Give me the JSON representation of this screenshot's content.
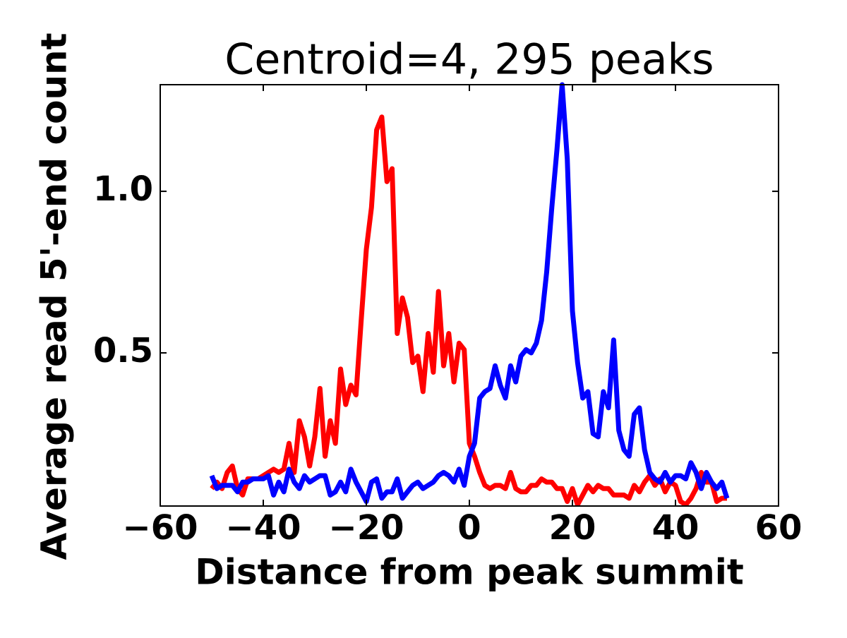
{
  "chart_data": {
    "type": "line",
    "title": "Centroid=4, 295 peaks",
    "xlabel": "Distance from peak summit",
    "ylabel": "Average read 5'-end count",
    "x": [
      -50,
      -49,
      -48,
      -47,
      -46,
      -45,
      -44,
      -43,
      -42,
      -41,
      -40,
      -39,
      -38,
      -37,
      -36,
      -35,
      -34,
      -33,
      -32,
      -31,
      -30,
      -29,
      -28,
      -27,
      -26,
      -25,
      -24,
      -23,
      -22,
      -21,
      -20,
      -19,
      -18,
      -17,
      -16,
      -15,
      -14,
      -13,
      -12,
      -11,
      -10,
      -9,
      -8,
      -7,
      -6,
      -5,
      -4,
      -3,
      -2,
      -1,
      0,
      1,
      2,
      3,
      4,
      5,
      6,
      7,
      8,
      9,
      10,
      11,
      12,
      13,
      14,
      15,
      16,
      17,
      18,
      19,
      20,
      21,
      22,
      23,
      24,
      25,
      26,
      27,
      28,
      29,
      30,
      31,
      32,
      33,
      34,
      35,
      36,
      37,
      38,
      39,
      40,
      41,
      42,
      43,
      44,
      45,
      46,
      47,
      48,
      49,
      50
    ],
    "series": [
      {
        "color": "#ff0000",
        "values": [
          0.08,
          0.1,
          0.08,
          0.13,
          0.15,
          0.08,
          0.06,
          0.11,
          0.11,
          0.11,
          0.12,
          0.13,
          0.14,
          0.13,
          0.14,
          0.22,
          0.13,
          0.29,
          0.24,
          0.15,
          0.24,
          0.39,
          0.18,
          0.29,
          0.22,
          0.45,
          0.34,
          0.4,
          0.37,
          0.6,
          0.82,
          0.95,
          1.19,
          1.23,
          1.03,
          1.07,
          0.56,
          0.67,
          0.61,
          0.47,
          0.49,
          0.38,
          0.56,
          0.44,
          0.69,
          0.46,
          0.56,
          0.41,
          0.53,
          0.51,
          0.22,
          0.18,
          0.13,
          0.09,
          0.08,
          0.09,
          0.09,
          0.08,
          0.13,
          0.08,
          0.07,
          0.07,
          0.09,
          0.09,
          0.11,
          0.1,
          0.1,
          0.08,
          0.08,
          0.04,
          0.08,
          0.03,
          0.06,
          0.09,
          0.07,
          0.09,
          0.08,
          0.08,
          0.06,
          0.06,
          0.06,
          0.05,
          0.09,
          0.07,
          0.1,
          0.12,
          0.09,
          0.11,
          0.07,
          0.1,
          0.09,
          0.04,
          0.03,
          0.05,
          0.08,
          0.13,
          0.1,
          0.1,
          0.04,
          0.05,
          0.05
        ]
      },
      {
        "color": "#0000ff",
        "values": [
          0.12,
          0.08,
          0.09,
          0.09,
          0.09,
          0.07,
          0.1,
          0.1,
          0.11,
          0.11,
          0.11,
          0.12,
          0.06,
          0.1,
          0.07,
          0.14,
          0.1,
          0.08,
          0.12,
          0.1,
          0.11,
          0.12,
          0.12,
          0.06,
          0.07,
          0.1,
          0.07,
          0.14,
          0.1,
          0.07,
          0.04,
          0.1,
          0.11,
          0.05,
          0.07,
          0.07,
          0.11,
          0.05,
          0.07,
          0.09,
          0.1,
          0.08,
          0.09,
          0.1,
          0.12,
          0.13,
          0.12,
          0.1,
          0.14,
          0.09,
          0.18,
          0.22,
          0.36,
          0.38,
          0.39,
          0.46,
          0.4,
          0.36,
          0.46,
          0.41,
          0.49,
          0.51,
          0.5,
          0.53,
          0.6,
          0.75,
          0.95,
          1.13,
          1.33,
          1.1,
          0.63,
          0.47,
          0.36,
          0.38,
          0.25,
          0.24,
          0.38,
          0.33,
          0.54,
          0.26,
          0.2,
          0.18,
          0.31,
          0.33,
          0.2,
          0.13,
          0.11,
          0.1,
          0.13,
          0.1,
          0.12,
          0.12,
          0.11,
          0.16,
          0.13,
          0.08,
          0.13,
          0.1,
          0.08,
          0.1,
          0.05
        ]
      }
    ],
    "xlim": [
      -60,
      60
    ],
    "xticks": [
      {
        "value": -60,
        "label": "−60"
      },
      {
        "value": -40,
        "label": "−40"
      },
      {
        "value": -20,
        "label": "−20"
      },
      0,
      20,
      40,
      60
    ],
    "ylim": [
      0.026,
      1.33
    ],
    "yticks": [
      0.5,
      {
        "value": 1.0,
        "label": "1.0"
      }
    ]
  }
}
